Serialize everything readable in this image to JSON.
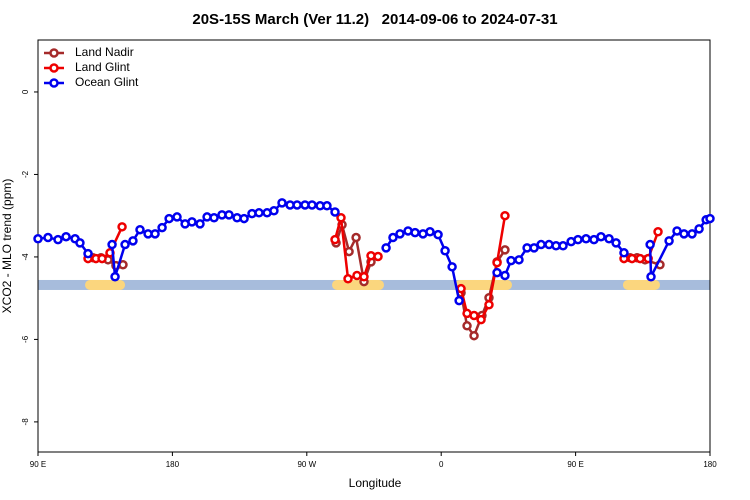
{
  "chart_data": {
    "type": "line",
    "title": "20S-15S March (Ver 11.2)   2014-09-06 to 2024-07-31",
    "x_label": "Longitude",
    "y_label": "XCO2 - MLO trend (ppm)",
    "xlim": [
      90,
      540
    ],
    "xticks": [
      {
        "value": 90,
        "label": "90 E"
      },
      {
        "value": 180,
        "label": "180"
      },
      {
        "value": 270,
        "label": "90 W"
      },
      {
        "value": 360,
        "label": "0"
      },
      {
        "value": 450,
        "label": "90 E"
      },
      {
        "value": 540,
        "label": "180"
      }
    ],
    "ylim": [
      -8.73,
      1.26
    ],
    "yticks": [
      0,
      -2,
      -4,
      -6,
      -8
    ],
    "legend": "top-left",
    "band": {
      "y": -4.68,
      "ocean_color": "#a7bcdc",
      "land_color": "#fbd67e",
      "land_ranges": [
        [
          121.5,
          148.3
        ],
        [
          286.9,
          321.7
        ],
        [
          369.2,
          407.4
        ],
        [
          481.7,
          506.5
        ]
      ]
    },
    "series": [
      {
        "name": "Land Nadir",
        "color": "#a52a2a",
        "x": [
          126.8,
          132.2,
          136.9,
          142.2,
          146.9,
          null,
          289.6,
          293.6,
          298.3,
          303.0,
          308.3,
          313.0,
          null,
          373.3,
          377.3,
          382.0,
          387.3,
          392.0,
          397.4,
          402.7,
          null,
          486.5,
          491.2,
          496.5,
          506.5
        ],
        "values": [
          -4.02,
          -4.02,
          -4.07,
          -4.21,
          -4.19,
          null,
          -3.66,
          -3.22,
          -3.87,
          -3.53,
          -4.6,
          -4.12,
          null,
          -4.87,
          -5.67,
          -5.91,
          -5.42,
          -4.99,
          -4.12,
          -3.83,
          null,
          -4.02,
          -4.02,
          -4.07,
          -4.19
        ]
      },
      {
        "name": "Land Glint",
        "color": "#ee0000",
        "x": [
          123.5,
          128.8,
          132.9,
          138.2,
          146.3,
          null,
          288.9,
          292.9,
          297.6,
          303.6,
          308.3,
          313.0,
          317.7,
          null,
          373.3,
          377.3,
          382.0,
          386.7,
          392.0,
          397.4,
          402.7,
          null,
          482.4,
          487.8,
          493.2,
          498.6,
          505.2
        ],
        "values": [
          -4.04,
          -4.04,
          -4.04,
          -3.9,
          -3.27,
          null,
          -3.58,
          -3.05,
          -4.53,
          -4.45,
          -4.48,
          -3.97,
          -3.99,
          null,
          -4.77,
          -5.37,
          -5.42,
          -5.52,
          -5.16,
          -4.14,
          -3.0,
          null,
          -4.04,
          -4.04,
          -4.04,
          -4.04,
          -3.39
        ]
      },
      {
        "name": "Ocean Glint",
        "color": "#0000ee",
        "x": [
          90,
          96.7,
          103.4,
          108.8,
          114.8,
          118.1,
          123.5,
          null,
          139.6,
          141.6,
          148.3,
          153.6,
          158.3,
          163.7,
          168.4,
          173.1,
          177.8,
          183.1,
          188.5,
          193.1,
          198.5,
          203.2,
          207.9,
          213.2,
          217.9,
          223.3,
          228.0,
          233.3,
          238.0,
          243.4,
          248.0,
          253.4,
          258.8,
          263.5,
          268.8,
          273.5,
          278.9,
          283.5,
          288.9,
          null,
          323.1,
          327.7,
          332.4,
          337.8,
          342.5,
          347.8,
          352.5,
          357.9,
          362.6,
          367.3,
          372.0,
          null,
          397.4,
          402.7,
          406.8,
          412.1,
          417.5,
          422.2,
          426.9,
          432.2,
          436.9,
          441.6,
          447.0,
          451.6,
          457.0,
          462.3,
          467.0,
          472.4,
          477.1,
          482.4,
          null,
          499.9,
          500.5,
          512.6,
          517.9,
          522.6,
          528.0,
          532.7,
          537.4,
          540
        ],
        "values": [
          -3.56,
          -3.53,
          -3.58,
          -3.51,
          -3.56,
          -3.66,
          -3.92,
          null,
          -3.7,
          -4.48,
          -3.7,
          -3.61,
          -3.34,
          -3.44,
          -3.44,
          -3.29,
          -3.07,
          -3.03,
          -3.2,
          -3.15,
          -3.2,
          -3.03,
          -3.05,
          -2.98,
          -2.98,
          -3.05,
          -3.07,
          -2.95,
          -2.93,
          -2.93,
          -2.88,
          -2.69,
          -2.74,
          -2.74,
          -2.74,
          -2.74,
          -2.76,
          -2.76,
          -2.91,
          null,
          -3.78,
          -3.53,
          -3.44,
          -3.37,
          -3.41,
          -3.44,
          -3.39,
          -3.46,
          -3.85,
          -4.24,
          -5.06,
          null,
          -4.38,
          -4.45,
          -4.09,
          -4.07,
          -3.78,
          -3.78,
          -3.7,
          -3.7,
          -3.73,
          -3.73,
          -3.63,
          -3.58,
          -3.56,
          -3.58,
          -3.51,
          -3.56,
          -3.66,
          -3.9,
          null,
          -3.7,
          -4.48,
          -3.61,
          -3.37,
          -3.44,
          -3.44,
          -3.32,
          -3.1,
          -3.07
        ]
      }
    ]
  }
}
